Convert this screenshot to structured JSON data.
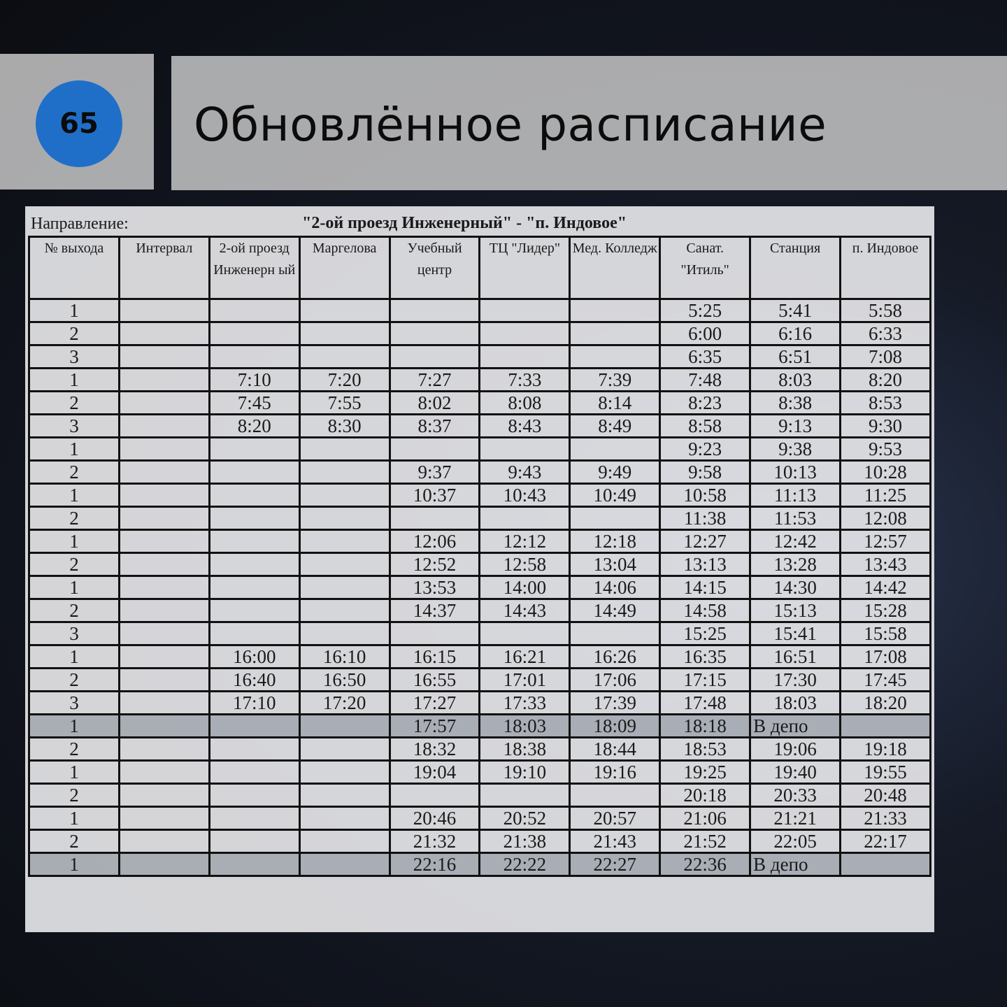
{
  "header": {
    "slide_number": "65",
    "title": "Обновлённое расписание",
    "badge_color": "#1f6fc9"
  },
  "schedule": {
    "direction_label": "Направление:",
    "direction_value": "\"2-ой проезд Инженерный\" - \"п. Индовое\"",
    "columns": [
      "№ выхода",
      "Интервал",
      "2-ой проезд Инженерн ый",
      "Маргелова",
      "Учебный центр",
      "ТЦ \"Лидер\"",
      "Мед. Колледж",
      "Санат. \"Итиль\"",
      "Станция",
      "п. Индовое"
    ],
    "rows": [
      {
        "cells": [
          "1",
          "",
          "",
          "",
          "",
          "",
          "",
          "5:25",
          "5:41",
          "5:58"
        ]
      },
      {
        "cells": [
          "2",
          "",
          "",
          "",
          "",
          "",
          "",
          "6:00",
          "6:16",
          "6:33"
        ]
      },
      {
        "cells": [
          "3",
          "",
          "",
          "",
          "",
          "",
          "",
          "6:35",
          "6:51",
          "7:08"
        ]
      },
      {
        "cells": [
          "1",
          "",
          "7:10",
          "7:20",
          "7:27",
          "7:33",
          "7:39",
          "7:48",
          "8:03",
          "8:20"
        ]
      },
      {
        "cells": [
          "2",
          "",
          "7:45",
          "7:55",
          "8:02",
          "8:08",
          "8:14",
          "8:23",
          "8:38",
          "8:53"
        ]
      },
      {
        "cells": [
          "3",
          "",
          "8:20",
          "8:30",
          "8:37",
          "8:43",
          "8:49",
          "8:58",
          "9:13",
          "9:30"
        ]
      },
      {
        "cells": [
          "1",
          "",
          "",
          "",
          "",
          "",
          "",
          "9:23",
          "9:38",
          "9:53"
        ]
      },
      {
        "cells": [
          "2",
          "",
          "",
          "",
          "9:37",
          "9:43",
          "9:49",
          "9:58",
          "10:13",
          "10:28"
        ]
      },
      {
        "cells": [
          "1",
          "",
          "",
          "",
          "10:37",
          "10:43",
          "10:49",
          "10:58",
          "11:13",
          "11:25"
        ]
      },
      {
        "cells": [
          "2",
          "",
          "",
          "",
          "",
          "",
          "",
          "11:38",
          "11:53",
          "12:08"
        ]
      },
      {
        "cells": [
          "1",
          "",
          "",
          "",
          "12:06",
          "12:12",
          "12:18",
          "12:27",
          "12:42",
          "12:57"
        ]
      },
      {
        "cells": [
          "2",
          "",
          "",
          "",
          "12:52",
          "12:58",
          "13:04",
          "13:13",
          "13:28",
          "13:43"
        ]
      },
      {
        "cells": [
          "1",
          "",
          "",
          "",
          "13:53",
          "14:00",
          "14:06",
          "14:15",
          "14:30",
          "14:42"
        ]
      },
      {
        "cells": [
          "2",
          "",
          "",
          "",
          "14:37",
          "14:43",
          "14:49",
          "14:58",
          "15:13",
          "15:28"
        ]
      },
      {
        "cells": [
          "3",
          "",
          "",
          "",
          "",
          "",
          "",
          "15:25",
          "15:41",
          "15:58"
        ]
      },
      {
        "cells": [
          "1",
          "",
          "16:00",
          "16:10",
          "16:15",
          "16:21",
          "16:26",
          "16:35",
          "16:51",
          "17:08"
        ]
      },
      {
        "cells": [
          "2",
          "",
          "16:40",
          "16:50",
          "16:55",
          "17:01",
          "17:06",
          "17:15",
          "17:30",
          "17:45"
        ]
      },
      {
        "cells": [
          "3",
          "",
          "17:10",
          "17:20",
          "17:27",
          "17:33",
          "17:39",
          "17:48",
          "18:03",
          "18:20"
        ]
      },
      {
        "cells": [
          "1",
          "",
          "",
          "",
          "17:57",
          "18:03",
          "18:09",
          "18:18",
          "В депо",
          ""
        ],
        "highlight": true
      },
      {
        "cells": [
          "2",
          "",
          "",
          "",
          "18:32",
          "18:38",
          "18:44",
          "18:53",
          "19:06",
          "19:18"
        ]
      },
      {
        "cells": [
          "1",
          "",
          "",
          "",
          "19:04",
          "19:10",
          "19:16",
          "19:25",
          "19:40",
          "19:55"
        ]
      },
      {
        "cells": [
          "2",
          "",
          "",
          "",
          "",
          "",
          "",
          "20:18",
          "20:33",
          "20:48"
        ]
      },
      {
        "cells": [
          "1",
          "",
          "",
          "",
          "20:46",
          "20:52",
          "20:57",
          "21:06",
          "21:21",
          "21:33"
        ]
      },
      {
        "cells": [
          "2",
          "",
          "",
          "",
          "21:32",
          "21:38",
          "21:43",
          "21:52",
          "22:05",
          "22:17"
        ]
      },
      {
        "cells": [
          "1",
          "",
          "",
          "",
          "22:16",
          "22:22",
          "22:27",
          "22:36",
          "В депо",
          ""
        ],
        "highlight": true
      }
    ]
  }
}
